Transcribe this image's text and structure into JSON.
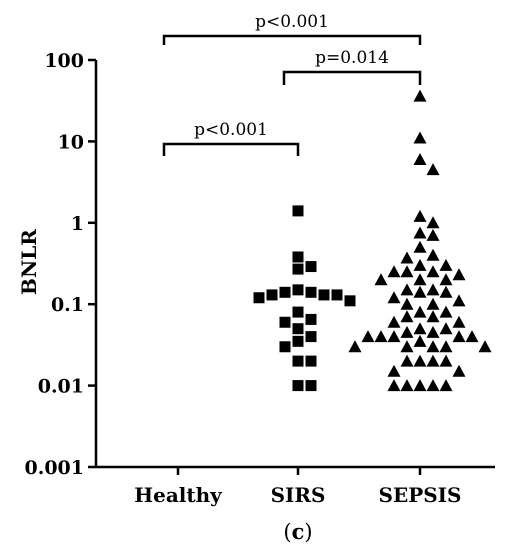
{
  "chart_data": {
    "type": "scatter",
    "ylabel": "BNLR",
    "yscale": "log",
    "ylim": [
      0.001,
      100
    ],
    "yticks": [
      {
        "value": 100,
        "label": "100"
      },
      {
        "value": 10,
        "label": "10"
      },
      {
        "value": 1,
        "label": "1"
      },
      {
        "value": 0.1,
        "label": "0.1"
      },
      {
        "value": 0.01,
        "label": "0.01"
      },
      {
        "value": 0.001,
        "label": "0.001"
      }
    ],
    "categories": [
      "Healthy",
      "SIRS",
      "SEPSIS"
    ],
    "series": [
      {
        "category": "SIRS",
        "marker": "square",
        "values": [
          1.4,
          0.38,
          0.29,
          0.27,
          0.15,
          0.14,
          0.14,
          0.13,
          0.13,
          0.13,
          0.12,
          0.11,
          0.08,
          0.065,
          0.06,
          0.05,
          0.04,
          0.035,
          0.03,
          0.02,
          0.02,
          0.01,
          0.01
        ]
      },
      {
        "category": "SEPSIS",
        "marker": "triangle",
        "values": [
          36,
          11,
          6,
          4.5,
          1.2,
          1.0,
          0.75,
          0.7,
          0.5,
          0.4,
          0.37,
          0.3,
          0.3,
          0.25,
          0.25,
          0.25,
          0.23,
          0.2,
          0.2,
          0.2,
          0.15,
          0.15,
          0.14,
          0.14,
          0.12,
          0.11,
          0.1,
          0.1,
          0.08,
          0.08,
          0.07,
          0.07,
          0.06,
          0.06,
          0.05,
          0.05,
          0.045,
          0.045,
          0.04,
          0.04,
          0.04,
          0.04,
          0.04,
          0.035,
          0.03,
          0.03,
          0.03,
          0.03,
          0.03,
          0.02,
          0.02,
          0.02,
          0.02,
          0.015,
          0.015,
          0.01,
          0.01,
          0.01,
          0.01,
          0.01
        ]
      }
    ],
    "comparisons": [
      {
        "from": "Healthy",
        "to": "SEPSIS",
        "label": "p<0.001"
      },
      {
        "from": "SIRS",
        "to": "SEPSIS",
        "label": "p=0.014"
      },
      {
        "from": "Healthy",
        "to": "SIRS",
        "label": "p<0.001"
      }
    ],
    "caption_open": "(",
    "caption_letter": "c",
    "caption_close": ")"
  }
}
